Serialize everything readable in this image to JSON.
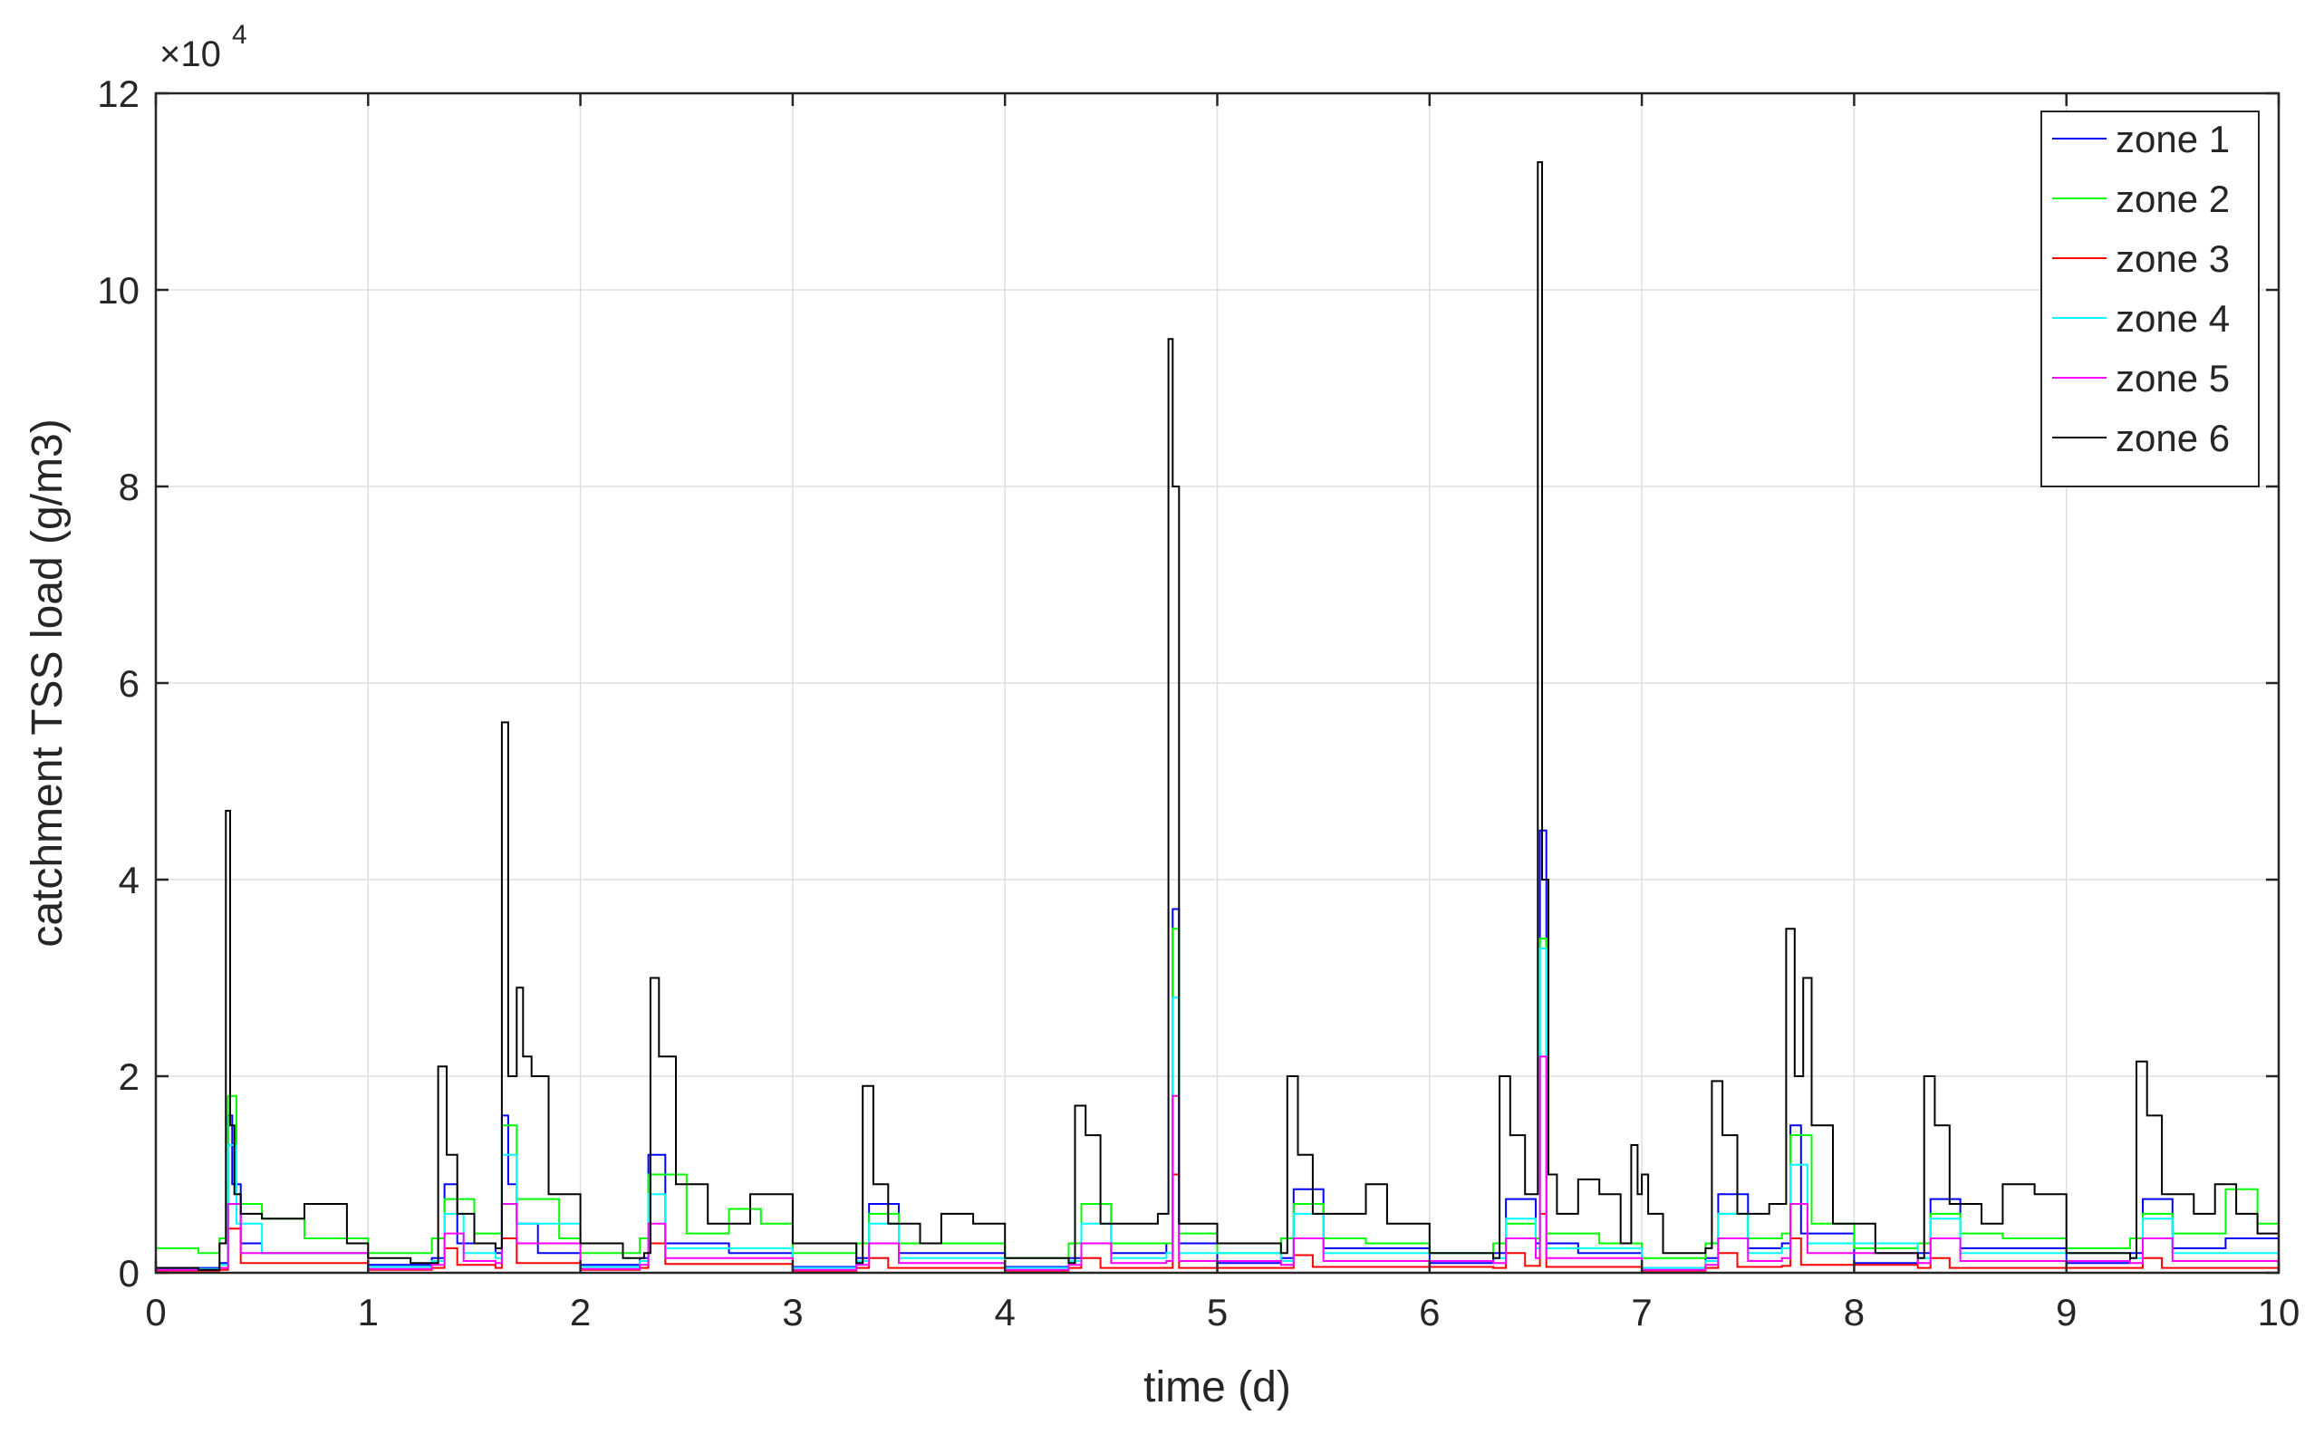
{
  "chart_data": {
    "type": "line",
    "xlabel": "time (d)",
    "ylabel": "catchment TSS load (g/m3)",
    "y_exponent_label": "×10",
    "y_exponent_power": "4",
    "xlim": [
      0,
      10
    ],
    "ylim": [
      0,
      120000
    ],
    "x_ticks": [
      "0",
      "1",
      "2",
      "3",
      "4",
      "5",
      "6",
      "7",
      "8",
      "9",
      "10"
    ],
    "y_ticks": [
      "0",
      "2",
      "4",
      "6",
      "8",
      "10",
      "12"
    ],
    "y_tick_values": [
      0,
      20000,
      40000,
      60000,
      80000,
      100000,
      120000
    ],
    "grid": true,
    "legend_position": "top-right",
    "colors": {
      "zone 1": "#0000ff",
      "zone 2": "#00ff00",
      "zone 3": "#ff0000",
      "zone 4": "#00ffff",
      "zone 5": "#ff00ff",
      "zone 6": "#000000"
    },
    "series": [
      {
        "name": "zone 1",
        "color": "#0000ff",
        "x": [
          0,
          0.3,
          0.34,
          0.36,
          0.4,
          0.5,
          1.0,
          1.3,
          1.36,
          1.42,
          1.6,
          1.63,
          1.66,
          1.7,
          1.8,
          2.0,
          2.28,
          2.32,
          2.4,
          2.7,
          3.0,
          3.3,
          3.36,
          3.5,
          4.0,
          4.3,
          4.36,
          4.5,
          4.76,
          4.79,
          4.82,
          5.0,
          5.3,
          5.36,
          5.5,
          6.0,
          6.3,
          6.36,
          6.5,
          6.52,
          6.55,
          6.7,
          7.0,
          7.3,
          7.36,
          7.5,
          7.66,
          7.7,
          7.75,
          8.0,
          8.3,
          8.36,
          8.5,
          9.0,
          9.3,
          9.36,
          9.5,
          9.75,
          10
        ],
        "y": [
          500,
          1000,
          16000,
          9000,
          3000,
          2000,
          800,
          1500,
          9000,
          3000,
          2000,
          16000,
          9000,
          5000,
          2000,
          800,
          1500,
          12000,
          3000,
          2000,
          600,
          1500,
          7000,
          2000,
          600,
          1500,
          7000,
          2000,
          3000,
          37000,
          3000,
          1000,
          1500,
          8500,
          2500,
          1000,
          2000,
          7500,
          3000,
          45000,
          3000,
          2000,
          500,
          1500,
          8000,
          2500,
          3000,
          15000,
          4000,
          1000,
          2000,
          7500,
          2500,
          1000,
          2000,
          7500,
          2500,
          3500,
          1500
        ]
      },
      {
        "name": "zone 2",
        "color": "#00ff00",
        "x": [
          0,
          0.2,
          0.3,
          0.34,
          0.38,
          0.5,
          0.7,
          1.0,
          1.3,
          1.36,
          1.5,
          1.6,
          1.63,
          1.7,
          1.9,
          2.0,
          2.28,
          2.32,
          2.5,
          2.7,
          2.85,
          3.0,
          3.3,
          3.36,
          3.5,
          4.0,
          4.3,
          4.36,
          4.5,
          4.76,
          4.79,
          4.82,
          5.0,
          5.3,
          5.36,
          5.5,
          5.7,
          6.0,
          6.3,
          6.36,
          6.5,
          6.52,
          6.55,
          6.8,
          7.0,
          7.3,
          7.36,
          7.5,
          7.66,
          7.7,
          7.8,
          8.0,
          8.3,
          8.36,
          8.5,
          8.7,
          9.0,
          9.3,
          9.36,
          9.5,
          9.75,
          9.9,
          10
        ],
        "y": [
          2500,
          2000,
          3500,
          18000,
          7000,
          5500,
          3500,
          2000,
          3500,
          7500,
          4000,
          4000,
          15000,
          7500,
          3500,
          2000,
          3500,
          10000,
          4000,
          6500,
          5000,
          2000,
          3000,
          6000,
          3000,
          1500,
          3000,
          7000,
          3000,
          3000,
          35000,
          4000,
          2000,
          3500,
          7000,
          3500,
          3000,
          2000,
          3000,
          5000,
          3500,
          34000,
          4000,
          3000,
          1500,
          3000,
          6000,
          3500,
          4000,
          14000,
          5000,
          2500,
          3000,
          6000,
          4000,
          3500,
          2500,
          3500,
          6000,
          4000,
          8500,
          5000,
          3000
        ]
      },
      {
        "name": "zone 3",
        "color": "#ff0000",
        "x": [
          0,
          0.3,
          0.34,
          0.4,
          1.0,
          1.3,
          1.36,
          1.42,
          1.6,
          1.63,
          1.7,
          2.0,
          2.28,
          2.32,
          2.4,
          3.0,
          3.3,
          3.36,
          3.45,
          4.0,
          4.3,
          4.36,
          4.45,
          4.76,
          4.79,
          4.82,
          5.3,
          5.36,
          5.45,
          6.3,
          6.36,
          6.45,
          6.52,
          6.55,
          7.0,
          7.3,
          7.36,
          7.45,
          7.66,
          7.7,
          7.75,
          8.3,
          8.36,
          8.45,
          9.3,
          9.36,
          9.45,
          10
        ],
        "y": [
          200,
          300,
          4500,
          1000,
          300,
          500,
          2500,
          800,
          500,
          3500,
          1000,
          300,
          500,
          3000,
          900,
          200,
          500,
          1500,
          500,
          200,
          500,
          1500,
          500,
          500,
          10000,
          500,
          500,
          1800,
          600,
          500,
          2000,
          700,
          6000,
          600,
          200,
          500,
          2000,
          600,
          700,
          3500,
          800,
          500,
          1500,
          500,
          500,
          1500,
          500,
          300
        ]
      },
      {
        "name": "zone 4",
        "color": "#00ffff",
        "x": [
          0,
          0.3,
          0.34,
          0.38,
          0.5,
          1.0,
          1.3,
          1.36,
          1.45,
          1.6,
          1.63,
          1.7,
          2.0,
          2.28,
          2.32,
          2.4,
          3.0,
          3.3,
          3.36,
          3.5,
          4.0,
          4.3,
          4.36,
          4.5,
          4.76,
          4.79,
          4.82,
          5.3,
          5.36,
          5.5,
          6.3,
          6.36,
          6.5,
          6.52,
          6.55,
          7.0,
          7.3,
          7.36,
          7.5,
          7.66,
          7.7,
          7.78,
          8.3,
          8.36,
          8.5,
          9.3,
          9.36,
          9.5,
          10
        ],
        "y": [
          400,
          800,
          13000,
          5000,
          2000,
          600,
          1200,
          6000,
          2000,
          1500,
          12000,
          5000,
          600,
          1200,
          8000,
          2500,
          500,
          1200,
          5000,
          1500,
          500,
          1200,
          5000,
          1500,
          2000,
          28000,
          2000,
          1200,
          6000,
          2000,
          1500,
          5500,
          2500,
          33000,
          2500,
          500,
          1200,
          6000,
          2000,
          2500,
          11000,
          3000,
          1500,
          5500,
          2000,
          1500,
          5500,
          2000,
          1000
        ]
      },
      {
        "name": "zone 5",
        "color": "#ff00ff",
        "x": [
          0,
          0.3,
          0.34,
          0.4,
          1.0,
          1.3,
          1.36,
          1.45,
          1.6,
          1.63,
          1.7,
          2.0,
          2.28,
          2.32,
          2.4,
          3.0,
          3.3,
          3.36,
          3.5,
          4.0,
          4.3,
          4.36,
          4.5,
          4.76,
          4.79,
          4.82,
          5.3,
          5.36,
          5.5,
          6.3,
          6.36,
          6.5,
          6.52,
          6.55,
          7.0,
          7.3,
          7.36,
          7.5,
          7.66,
          7.7,
          7.78,
          8.3,
          8.36,
          8.5,
          9.3,
          9.36,
          9.5,
          10
        ],
        "y": [
          300,
          500,
          7000,
          2000,
          400,
          800,
          4000,
          1200,
          1000,
          7000,
          3000,
          400,
          800,
          5000,
          1500,
          300,
          800,
          3000,
          1000,
          300,
          800,
          3000,
          1000,
          1200,
          18000,
          1200,
          800,
          3500,
          1200,
          1000,
          3500,
          1500,
          22000,
          1500,
          300,
          800,
          3500,
          1200,
          1500,
          7000,
          2000,
          1000,
          3500,
          1200,
          1000,
          3500,
          1200,
          600
        ]
      },
      {
        "name": "zone 6",
        "color": "#000000",
        "x": [
          0,
          0.2,
          0.3,
          0.33,
          0.35,
          0.37,
          0.4,
          0.5,
          0.7,
          0.9,
          1.0,
          1.2,
          1.33,
          1.37,
          1.42,
          1.5,
          1.6,
          1.63,
          1.66,
          1.7,
          1.73,
          1.77,
          1.85,
          2.0,
          2.2,
          2.3,
          2.33,
          2.37,
          2.45,
          2.6,
          2.8,
          3.0,
          3.3,
          3.33,
          3.38,
          3.45,
          3.6,
          3.7,
          3.85,
          4.0,
          4.3,
          4.33,
          4.38,
          4.45,
          4.6,
          4.72,
          4.77,
          4.79,
          4.82,
          5.0,
          5.3,
          5.33,
          5.38,
          5.45,
          5.7,
          5.8,
          6.0,
          6.3,
          6.33,
          6.38,
          6.45,
          6.51,
          6.53,
          6.56,
          6.6,
          6.7,
          6.8,
          6.9,
          6.95,
          6.98,
          7.0,
          7.03,
          7.1,
          7.3,
          7.33,
          7.38,
          7.45,
          7.6,
          7.68,
          7.72,
          7.76,
          7.8,
          7.9,
          8.1,
          8.3,
          8.33,
          8.38,
          8.45,
          8.6,
          8.7,
          8.85,
          9.0,
          9.3,
          9.33,
          9.38,
          9.45,
          9.6,
          9.7,
          9.8,
          9.9,
          10
        ],
        "y": [
          500,
          300,
          3000,
          47000,
          15000,
          8000,
          6000,
          5500,
          7000,
          3000,
          1500,
          1000,
          21000,
          12000,
          6000,
          3000,
          2500,
          56000,
          20000,
          29000,
          22000,
          20000,
          8000,
          3000,
          1500,
          2000,
          30000,
          22000,
          9000,
          5000,
          8000,
          3000,
          1000,
          19000,
          9000,
          5000,
          3000,
          6000,
          5000,
          1500,
          1000,
          17000,
          14000,
          5000,
          5000,
          6000,
          95000,
          80000,
          5000,
          3000,
          2000,
          20000,
          12000,
          6000,
          9000,
          5000,
          2000,
          1500,
          20000,
          14000,
          8000,
          113000,
          40000,
          10000,
          6000,
          9500,
          8000,
          3000,
          13000,
          8000,
          10000,
          6000,
          2000,
          2500,
          19500,
          14000,
          6000,
          7000,
          35000,
          20000,
          30000,
          15000,
          5000,
          2000,
          1500,
          20000,
          15000,
          7000,
          5000,
          9000,
          8000,
          2000,
          1500,
          21500,
          16000,
          8000,
          6000,
          9000,
          6000,
          4000,
          3000
        ]
      }
    ]
  }
}
